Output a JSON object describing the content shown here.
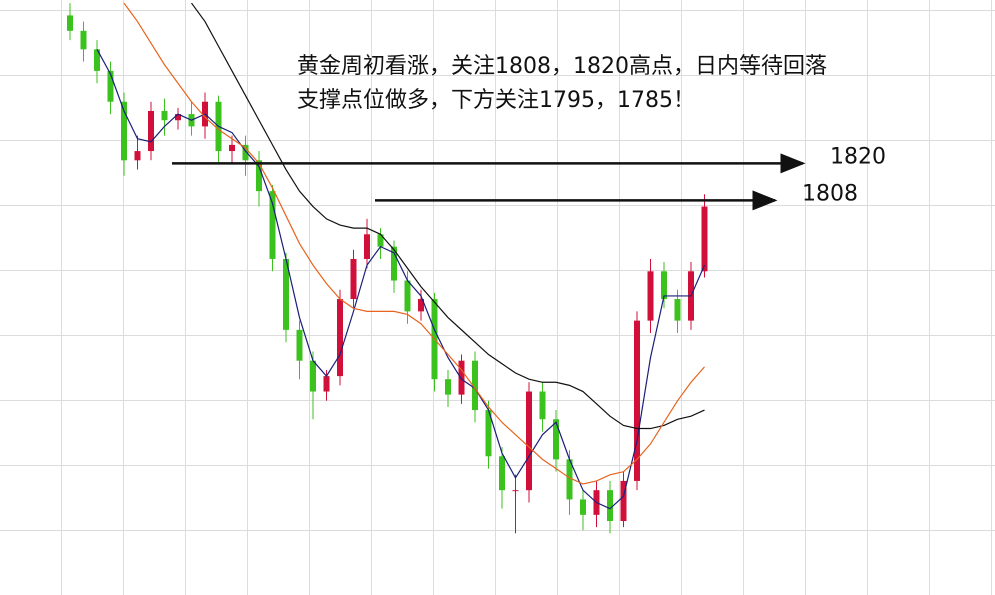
{
  "chart_data": {
    "type": "candlestick",
    "title_lines": [
      "黄金周初看涨，关注1808，1820高点，日内等待回落",
      "支撑点位做多，下方关注1795，1785！"
    ],
    "open": [
      1868,
      1863,
      1857,
      1850,
      1840,
      1821,
      1824,
      1837,
      1834,
      1836,
      1832,
      1840,
      1824,
      1826,
      1821,
      1811,
      1789,
      1766,
      1756,
      1746,
      1751,
      1776,
      1789,
      1797,
      1793,
      1782,
      1772,
      1776,
      1750,
      1745,
      1756,
      1740,
      1725,
      1714,
      1714,
      1746,
      1737,
      1724,
      1711,
      1706,
      1714,
      1704,
      1717,
      1769,
      1785,
      1776,
      1769,
      1785
    ],
    "high": [
      1872,
      1866,
      1860,
      1853,
      1843,
      1829,
      1840,
      1841,
      1838,
      1840,
      1843,
      1842,
      1829,
      1829,
      1824,
      1813,
      1791,
      1769,
      1759,
      1753,
      1779,
      1792,
      1802,
      1799,
      1795,
      1785,
      1779,
      1778,
      1753,
      1758,
      1759,
      1743,
      1728,
      1719,
      1749,
      1749,
      1740,
      1727,
      1714,
      1717,
      1717,
      1720,
      1772,
      1789,
      1788,
      1779,
      1788,
      1810
    ],
    "low": [
      1860,
      1853,
      1846,
      1836,
      1816,
      1818,
      1821,
      1829,
      1831,
      1829,
      1828,
      1820,
      1820,
      1816,
      1806,
      1785,
      1762,
      1750,
      1737,
      1743,
      1748,
      1773,
      1786,
      1789,
      1778,
      1768,
      1769,
      1746,
      1741,
      1742,
      1736,
      1721,
      1708,
      1700,
      1710,
      1733,
      1720,
      1706,
      1701,
      1702,
      1700,
      1702,
      1714,
      1765,
      1773,
      1765,
      1766,
      1783
    ],
    "close": [
      1863,
      1857,
      1850,
      1840,
      1821,
      1824,
      1837,
      1834,
      1836,
      1832,
      1840,
      1824,
      1826,
      1821,
      1811,
      1789,
      1766,
      1756,
      1746,
      1751,
      1776,
      1789,
      1797,
      1793,
      1782,
      1772,
      1776,
      1750,
      1745,
      1756,
      1740,
      1725,
      1714,
      1714,
      1746,
      1737,
      1724,
      1711,
      1706,
      1714,
      1704,
      1717,
      1769,
      1785,
      1776,
      1769,
      1785,
      1806
    ],
    "up_color": "#d0103a",
    "down_color": "#3cc21e",
    "lines": [
      {
        "color": "#1a1f7a",
        "values": [
          null,
          null,
          1857,
          1849,
          1837,
          1828,
          1827,
          1832,
          1836,
          1834,
          1836,
          1832,
          1830,
          1824,
          1819,
          1807,
          1789,
          1770,
          1756,
          1751,
          1758,
          1772,
          1787,
          1793,
          1791,
          1782,
          1777,
          1766,
          1757,
          1750,
          1747,
          1740,
          1726,
          1718,
          1725,
          1732,
          1736,
          1724,
          1714,
          1710,
          1708,
          1712,
          1730,
          1757,
          1777,
          1777,
          1777,
          1787
        ]
      },
      {
        "color": "#111111",
        "values": [
          null,
          null,
          null,
          null,
          null,
          null,
          null,
          null,
          null,
          1872,
          1866,
          1858,
          1850,
          1842,
          1834,
          1826,
          1818,
          1811,
          1806,
          1802,
          1800,
          1799,
          1799,
          1797,
          1792,
          1786,
          1780,
          1775,
          1770,
          1766,
          1762,
          1758,
          1755,
          1752,
          1750,
          1749,
          1749,
          1748,
          1746,
          1742,
          1738,
          1735,
          1734,
          1734,
          1735,
          1737,
          1738,
          1740
        ]
      },
      {
        "color": "#e8641e",
        "values": [
          null,
          null,
          null,
          null,
          1872,
          1866,
          1859,
          1852,
          1846,
          1840,
          1835,
          1831,
          1828,
          1825,
          1820,
          1812,
          1803,
          1794,
          1787,
          1781,
          1776,
          1773,
          1772,
          1772,
          1772,
          1771,
          1768,
          1763,
          1758,
          1753,
          1747,
          1741,
          1736,
          1732,
          1728,
          1724,
          1721,
          1718,
          1716,
          1717,
          1719,
          1720,
          1724,
          1729,
          1736,
          1743,
          1749,
          1754
        ]
      }
    ],
    "levels": [
      1820,
      1808
    ],
    "ylim": [
      1680,
      1873
    ]
  }
}
